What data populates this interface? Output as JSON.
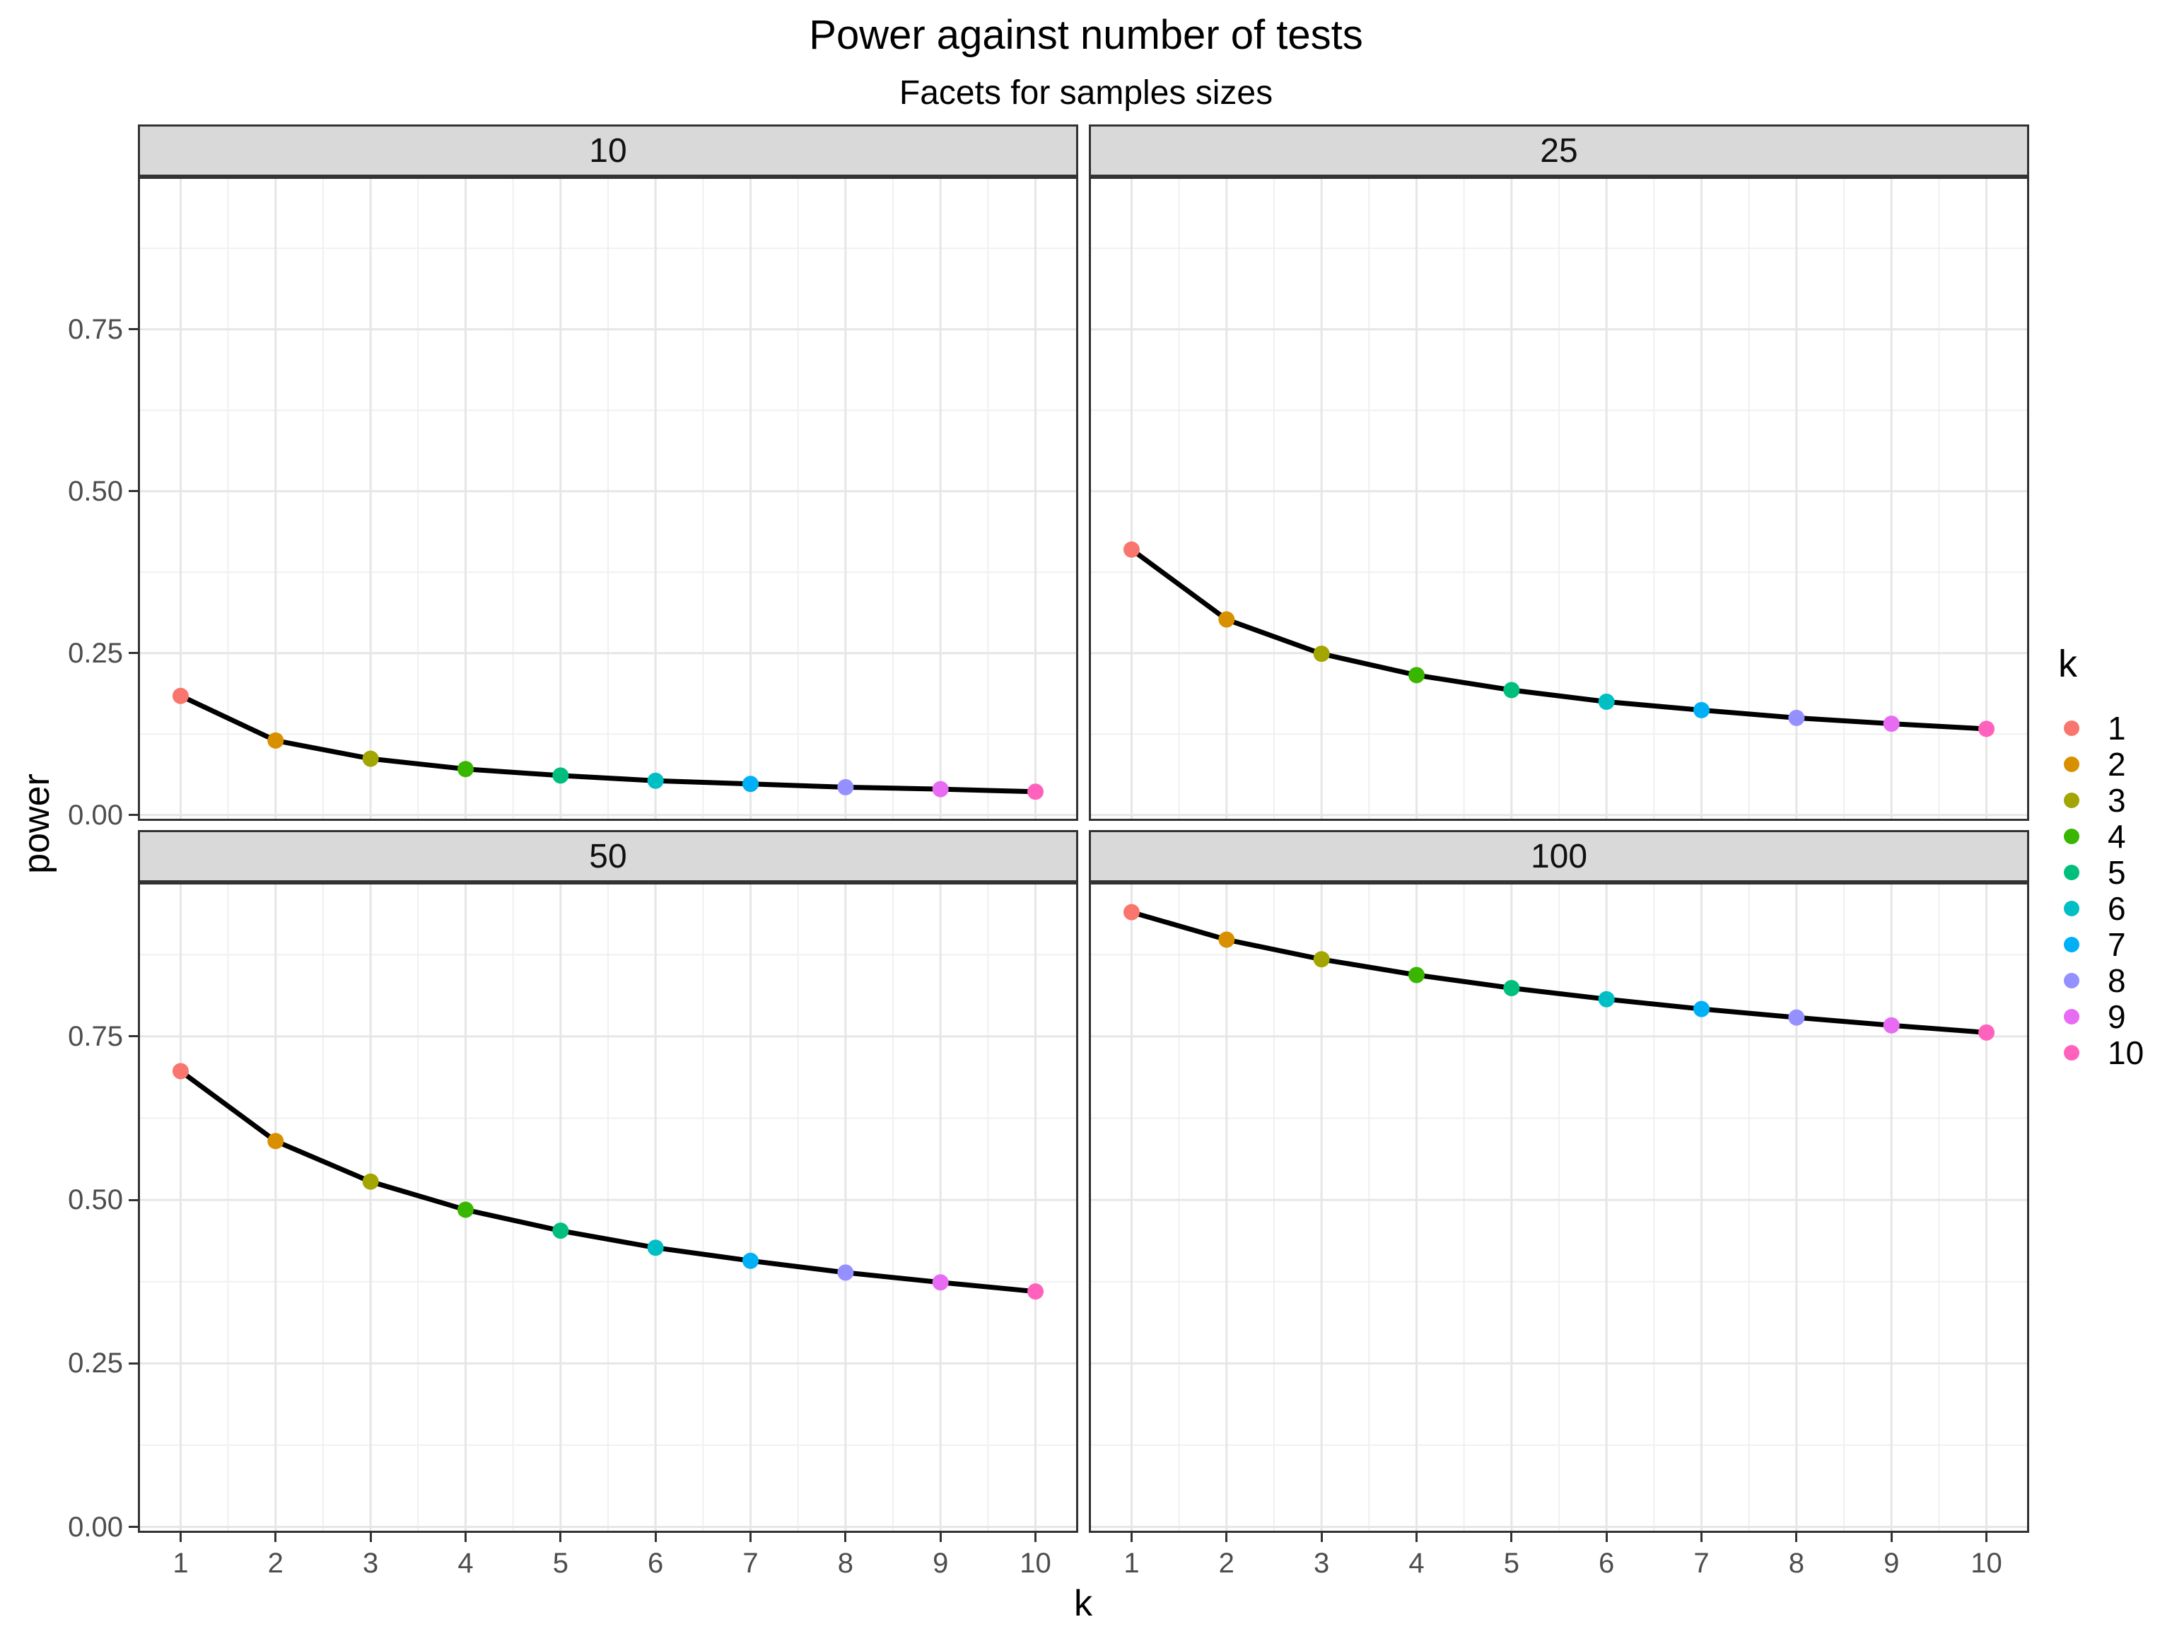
{
  "title": "Power against number of tests",
  "subtitle": "Facets for samples sizes",
  "axes": {
    "x_title": "k",
    "y_title": "power",
    "x_ticks": [
      1,
      2,
      3,
      4,
      5,
      6,
      7,
      8,
      9,
      10
    ],
    "y_ticks": [
      {
        "value": 0.0,
        "label": "0.00"
      },
      {
        "value": 0.25,
        "label": "0.25"
      },
      {
        "value": 0.5,
        "label": "0.50"
      },
      {
        "value": 0.75,
        "label": "0.75"
      }
    ]
  },
  "legend": {
    "title": "k",
    "entries": [
      {
        "label": "1",
        "color": "#F8766D"
      },
      {
        "label": "2",
        "color": "#D89000"
      },
      {
        "label": "3",
        "color": "#A3A500"
      },
      {
        "label": "4",
        "color": "#39B600"
      },
      {
        "label": "5",
        "color": "#00BF7D"
      },
      {
        "label": "6",
        "color": "#00BFC4"
      },
      {
        "label": "7",
        "color": "#00B0F6"
      },
      {
        "label": "8",
        "color": "#9590FF"
      },
      {
        "label": "9",
        "color": "#E76BF3"
      },
      {
        "label": "10",
        "color": "#FF62BC"
      }
    ]
  },
  "chart_data": {
    "type": "line",
    "title": "Power against number of tests",
    "subtitle": "Facets for samples sizes",
    "xlabel": "k",
    "ylabel": "power",
    "facet_variable": "sample size",
    "x": [
      1,
      2,
      3,
      4,
      5,
      6,
      7,
      8,
      9,
      10
    ],
    "facets": [
      {
        "label": "10",
        "values": [
          0.184,
          0.115,
          0.087,
          0.071,
          0.061,
          0.053,
          0.048,
          0.043,
          0.04,
          0.036
        ]
      },
      {
        "label": "25",
        "values": [
          0.41,
          0.302,
          0.249,
          0.216,
          0.193,
          0.175,
          0.162,
          0.15,
          0.141,
          0.133
        ]
      },
      {
        "label": "50",
        "values": [
          0.697,
          0.59,
          0.528,
          0.485,
          0.453,
          0.427,
          0.407,
          0.389,
          0.374,
          0.36
        ]
      },
      {
        "label": "100",
        "values": [
          0.94,
          0.898,
          0.868,
          0.844,
          0.824,
          0.807,
          0.792,
          0.779,
          0.767,
          0.756
        ]
      }
    ],
    "point_color_by_x": [
      "#F8766D",
      "#D89000",
      "#A3A500",
      "#39B600",
      "#00BF7D",
      "#00BFC4",
      "#00B0F6",
      "#9590FF",
      "#E76BF3",
      "#FF62BC"
    ],
    "line_color": "#000000",
    "xlim": [
      0.55,
      10.45
    ],
    "ylim": [
      -0.009,
      0.9856
    ],
    "x_major_gridlines": [
      1,
      2,
      3,
      4,
      5,
      6,
      7,
      8,
      9,
      10
    ],
    "x_minor_gridlines": [
      1.5,
      2.5,
      3.5,
      4.5,
      5.5,
      6.5,
      7.5,
      8.5,
      9.5
    ],
    "y_major_gridlines": [
      0,
      0.25,
      0.5,
      0.75
    ],
    "y_minor_gridlines": [
      0.125,
      0.375,
      0.625,
      0.875
    ],
    "grid": "major+minor",
    "legend_position": "right"
  },
  "colors": {
    "strip_background": "#D9D9D9",
    "panel_border": "#333333",
    "grid_major": "#E6E6E6",
    "grid_minor": "#F0F0F0",
    "tick_text": "#4D4D4D",
    "line": "#000000"
  }
}
